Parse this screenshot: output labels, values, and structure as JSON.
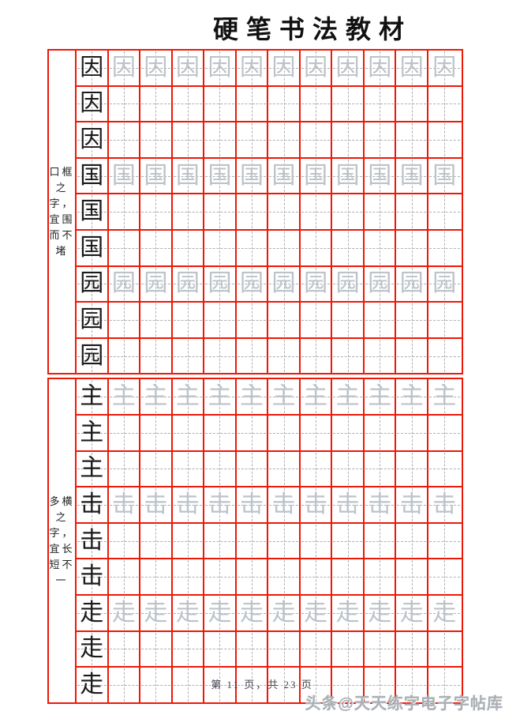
{
  "page": {
    "title": "硬笔书法教材",
    "footer": "第 11 页，共 23 页",
    "watermark": "头条@天天练字电子字帖库"
  },
  "grid": {
    "columns": 12,
    "rows_per_group": 3,
    "trace_copies_per_row": 11
  },
  "colors": {
    "red": "#ee1808",
    "guide": "#b0b0b0",
    "trace": "#bcc3c9",
    "ink": "#1b1b1b",
    "wm": "#aab0b5",
    "footer": "#44454f"
  },
  "sections": [
    {
      "annotation_text": "口框之字，宜围而不堵",
      "annotation_lines": [
        "口框",
        "之",
        "字，",
        "宜围",
        "而不",
        "堵"
      ],
      "groups": [
        {
          "char": "因"
        },
        {
          "char": "国"
        },
        {
          "char": "园"
        }
      ]
    },
    {
      "annotation_text": "多横之字，宜长短不一",
      "annotation_lines": [
        "多横",
        "之",
        "字，",
        "宜长",
        "短不",
        "一"
      ],
      "groups": [
        {
          "char": "主"
        },
        {
          "char": "击"
        },
        {
          "char": "走"
        }
      ]
    }
  ]
}
